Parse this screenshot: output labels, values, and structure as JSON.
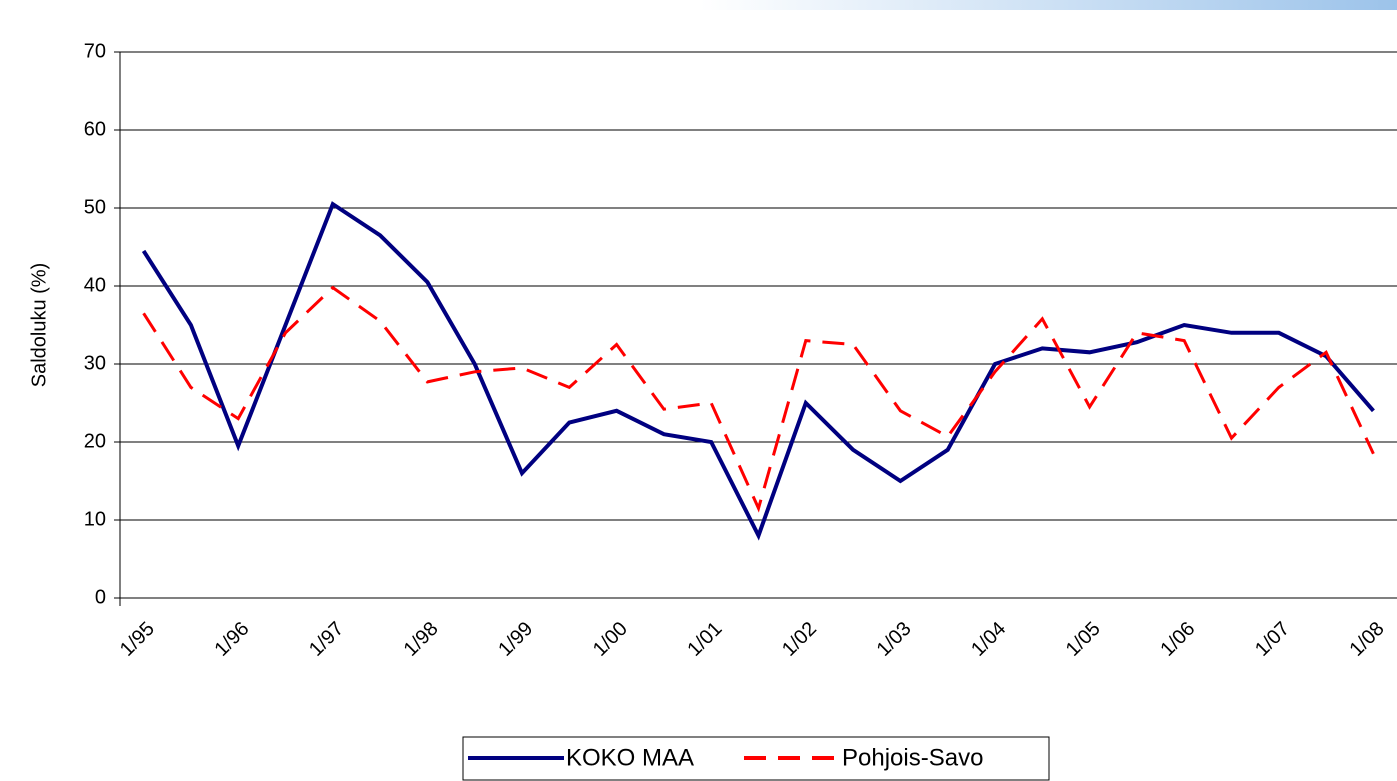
{
  "chart_data": {
    "type": "line",
    "y_label": "Saldoluku (%)",
    "categories": [
      "1/95",
      null,
      "1/96",
      null,
      "1/97",
      null,
      "1/98",
      null,
      "1/99",
      null,
      "1/00",
      null,
      "1/01",
      null,
      "1/02",
      null,
      "1/03",
      null,
      "1/04",
      null,
      "1/05",
      null,
      "1/06",
      null,
      "1/07",
      null,
      "1/08"
    ],
    "series": [
      {
        "name": "KOKO MAA",
        "color": "#000080",
        "dash": false,
        "values": [
          44.5,
          35,
          19.5,
          35,
          50.5,
          46.5,
          40.5,
          30,
          16,
          22.5,
          24,
          21,
          20,
          8,
          25,
          19,
          15,
          19,
          30,
          32,
          31.5,
          32.8,
          35,
          34,
          34,
          31,
          24
        ]
      },
      {
        "name": "Pohjois-Savo",
        "color": "#ff0000",
        "dash": true,
        "values": [
          36.5,
          27,
          23,
          34,
          39.8,
          35.5,
          27.7,
          29,
          29.5,
          27,
          32.5,
          24.2,
          25,
          11.5,
          33,
          32.5,
          24,
          20.7,
          29,
          35.8,
          24.5,
          34,
          33,
          20.5,
          27,
          31.5,
          18.5
        ]
      }
    ],
    "ylim": [
      0,
      70
    ],
    "yticks": [
      0,
      10,
      20,
      30,
      40,
      50,
      60,
      70
    ],
    "grid": true,
    "legend": "bottom"
  }
}
